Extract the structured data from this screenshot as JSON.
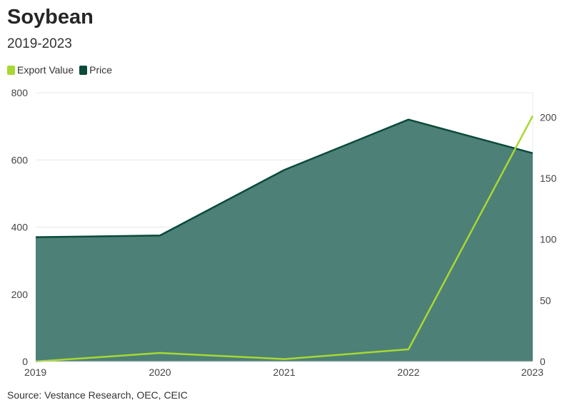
{
  "title": "Soybean",
  "subtitle": "2019-2023",
  "legend": [
    {
      "label": "Export Value",
      "color": "#a8d832"
    },
    {
      "label": "Price",
      "color": "#0a4a3a"
    }
  ],
  "source": "Source: Vestance Research, OEC, CEIC",
  "chart_data": {
    "type": "area",
    "categories": [
      "2019",
      "2020",
      "2021",
      "2022",
      "2023"
    ],
    "series": [
      {
        "name": "Price",
        "type": "area",
        "axis": "left",
        "color": "#0a4a3a",
        "fill": "#4d8077",
        "values": [
          370,
          375,
          570,
          720,
          620
        ]
      },
      {
        "name": "Export Value",
        "type": "line",
        "axis": "right",
        "color": "#a8d832",
        "values": [
          0,
          7,
          2,
          10,
          201
        ]
      }
    ],
    "y_left": {
      "range": [
        0,
        800
      ],
      "ticks": [
        0,
        200,
        400,
        600,
        800
      ]
    },
    "y_right": {
      "range": [
        0,
        220
      ],
      "ticks": [
        0,
        50,
        100,
        150,
        200
      ]
    },
    "grid": true,
    "legend_position": "top-left"
  }
}
